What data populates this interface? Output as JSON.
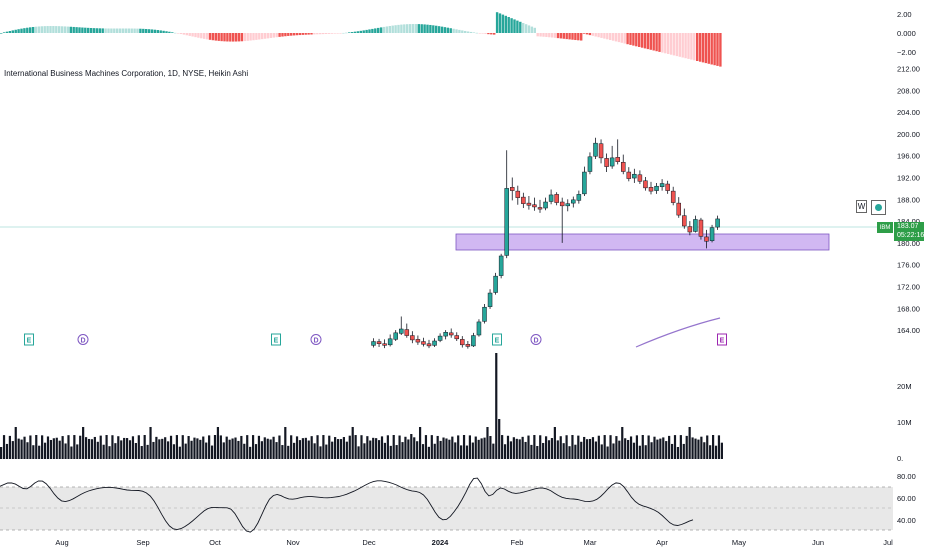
{
  "chart_data": {
    "type": "candlestick",
    "title": "International Business Machines Corporation, 1D, NYSE, Heikin Ashi",
    "symbol_tag": "IBM",
    "last_price": "183.07",
    "countdown": "05:22:16",
    "timeframe_button": "W",
    "price_axis": [
      "212.00",
      "208.00",
      "204.00",
      "200.00",
      "196.00",
      "192.00",
      "188.00",
      "184.00",
      "180.00",
      "176.00",
      "172.00",
      "168.00",
      "164.00"
    ],
    "oscillator_axis": [
      "2.00",
      "0.000",
      "−2.00"
    ],
    "volume_axis": [
      "20M",
      "10M",
      "0."
    ],
    "rsi_axis": [
      "80.00",
      "60.00",
      "40.00"
    ],
    "time_axis": [
      "Aug",
      "Sep",
      "Oct",
      "Nov",
      "Dec",
      "2024",
      "Feb",
      "Mar",
      "Apr",
      "May",
      "Jun",
      "Jul"
    ],
    "events": [
      "E",
      "D",
      "E",
      "D",
      "E",
      "D",
      "E"
    ],
    "ohlc_late": [
      [
        161.2,
        162.5,
        160.8,
        161.9
      ],
      [
        161.9,
        162.4,
        160.9,
        161.5
      ],
      [
        161.5,
        162.3,
        160.7,
        161.2
      ],
      [
        161.3,
        163.2,
        161.0,
        162.4
      ],
      [
        162.3,
        164.0,
        162.0,
        163.5
      ],
      [
        163.4,
        166.5,
        163.1,
        164.2
      ],
      [
        164.1,
        165.2,
        162.6,
        163.0
      ],
      [
        163.0,
        163.8,
        161.6,
        162.2
      ],
      [
        162.3,
        163.0,
        161.3,
        161.8
      ],
      [
        161.9,
        162.6,
        161.0,
        161.4
      ],
      [
        161.5,
        162.2,
        160.7,
        161.1
      ],
      [
        161.2,
        162.5,
        160.9,
        162.0
      ],
      [
        162.1,
        163.4,
        161.8,
        162.9
      ],
      [
        162.9,
        164.0,
        162.3,
        163.6
      ],
      [
        163.5,
        164.3,
        162.6,
        163.1
      ],
      [
        163.0,
        163.6,
        162.0,
        162.4
      ],
      [
        162.3,
        162.9,
        160.8,
        161.3
      ],
      [
        161.4,
        162.0,
        160.6,
        161.0
      ],
      [
        161.1,
        163.5,
        160.9,
        163.0
      ],
      [
        163.1,
        166.0,
        162.8,
        165.5
      ],
      [
        165.6,
        168.8,
        165.2,
        168.2
      ],
      [
        168.3,
        171.5,
        167.9,
        170.8
      ],
      [
        170.9,
        174.5,
        170.5,
        173.9
      ],
      [
        174.0,
        178.0,
        173.5,
        177.6
      ],
      [
        177.7,
        197.0,
        177.2,
        190.0
      ],
      [
        190.2,
        192.0,
        187.8,
        189.6
      ],
      [
        189.5,
        190.5,
        187.0,
        188.3
      ],
      [
        188.4,
        189.2,
        186.4,
        187.2
      ],
      [
        187.3,
        188.6,
        186.1,
        186.9
      ],
      [
        187.0,
        188.3,
        185.9,
        186.6
      ],
      [
        186.5,
        187.9,
        185.5,
        186.2
      ],
      [
        186.4,
        188.3,
        186.0,
        187.5
      ],
      [
        187.6,
        189.8,
        187.1,
        188.8
      ],
      [
        188.9,
        189.3,
        186.9,
        187.4
      ],
      [
        187.5,
        188.3,
        180.0,
        186.8
      ],
      [
        186.8,
        188.0,
        185.8,
        187.2
      ],
      [
        187.3,
        188.5,
        186.5,
        187.9
      ],
      [
        187.8,
        189.6,
        187.2,
        188.9
      ],
      [
        189.0,
        194.0,
        188.6,
        193.0
      ],
      [
        193.1,
        196.6,
        192.6,
        195.8
      ],
      [
        195.9,
        199.3,
        195.4,
        198.3
      ],
      [
        198.2,
        199.0,
        194.6,
        195.6
      ],
      [
        195.5,
        196.4,
        193.0,
        194.0
      ],
      [
        194.1,
        197.8,
        193.6,
        195.6
      ],
      [
        195.7,
        199.0,
        194.4,
        194.9
      ],
      [
        194.8,
        196.2,
        192.6,
        193.1
      ],
      [
        193.0,
        193.9,
        191.3,
        191.8
      ],
      [
        191.9,
        193.6,
        191.0,
        192.6
      ],
      [
        192.5,
        193.3,
        190.8,
        191.3
      ],
      [
        191.4,
        192.1,
        189.6,
        190.1
      ],
      [
        190.2,
        191.2,
        188.9,
        189.5
      ],
      [
        189.6,
        191.0,
        189.0,
        190.4
      ],
      [
        190.3,
        191.7,
        189.6,
        190.9
      ],
      [
        190.8,
        191.4,
        189.0,
        189.6
      ],
      [
        189.5,
        190.3,
        186.9,
        187.4
      ],
      [
        187.3,
        188.4,
        184.6,
        185.1
      ],
      [
        185.0,
        186.3,
        182.6,
        183.1
      ],
      [
        183.0,
        184.0,
        181.4,
        182.0
      ],
      [
        182.1,
        185.0,
        181.9,
        184.3
      ],
      [
        184.2,
        184.6,
        180.6,
        181.2
      ],
      [
        181.1,
        182.4,
        179.0,
        180.3
      ],
      [
        180.4,
        183.3,
        180.1,
        182.8
      ],
      [
        182.9,
        185.0,
        182.4,
        184.4
      ]
    ],
    "rsi_values": [
      70.7,
      72.2,
      73.6,
      73.7,
      72.6,
      70.5,
      68.6,
      68.4,
      70.5,
      73.5,
      75.5,
      75.4,
      73.0,
      68.8,
      64.0,
      60.0,
      57.4,
      56.7,
      57.6,
      59.3,
      61.3,
      63.3,
      65.0,
      66.4,
      67.5,
      68.4,
      69.0,
      69.5,
      69.7,
      69.6,
      69.2,
      68.6,
      67.9,
      67.3,
      67.0,
      66.9,
      66.8,
      66.2,
      64.6,
      61.8,
      57.4,
      51.6,
      45.2,
      39.2,
      34.6,
      32.0,
      31.3,
      32.2,
      34.0,
      36.4,
      39.1,
      42.1,
      45.3,
      48.3,
      50.4,
      51.5,
      51.5,
      51.2,
      51.2,
      51.1,
      49.8,
      46.0,
      40.1,
      34.0,
      30.0,
      29.0,
      31.6,
      37.3,
      44.9,
      52.7,
      58.9,
      62.3,
      63.2,
      62.1,
      60.4,
      59.2,
      58.9,
      59.4,
      60.3,
      61.0,
      61.3,
      61.3,
      61.0,
      60.6,
      60.3,
      60.2,
      60.4,
      60.8,
      61.4,
      62.3,
      63.4,
      64.8,
      66.3,
      68.1,
      70.0,
      71.9,
      73.6,
      74.9,
      75.6,
      75.6,
      75.1,
      74.3,
      73.2,
      71.8,
      70.1,
      68.5,
      67.3,
      66.5,
      66.0,
      65.0,
      62.7,
      58.6,
      53.1,
      47.2,
      42.5,
      40.2,
      40.6,
      43.4,
      47.7,
      52.7,
      58.5,
      65.2,
      72.4,
      77.6,
      78.1,
      73.1,
      65.9,
      61.9,
      63.3,
      67.1,
      69.1,
      68.2,
      66.2,
      64.7,
      64.2,
      64.6,
      65.4,
      66.4,
      67.4,
      68.4,
      69.0,
      69.0,
      68.3,
      66.7,
      64.5,
      62.3,
      60.6,
      59.7,
      59.3,
      59.1,
      58.6,
      57.7,
      56.9,
      56.7,
      57.3,
      58.8,
      61.4,
      64.8,
      68.6,
      71.8,
      73.7,
      73.3,
      70.4,
      65.6,
      60.7,
      56.8,
      54.3,
      52.8,
      51.7,
      50.5,
      49.0,
      46.9,
      44.1,
      40.7,
      37.5,
      35.5,
      35.0,
      35.9,
      37.4,
      38.9,
      40.2
    ]
  }
}
